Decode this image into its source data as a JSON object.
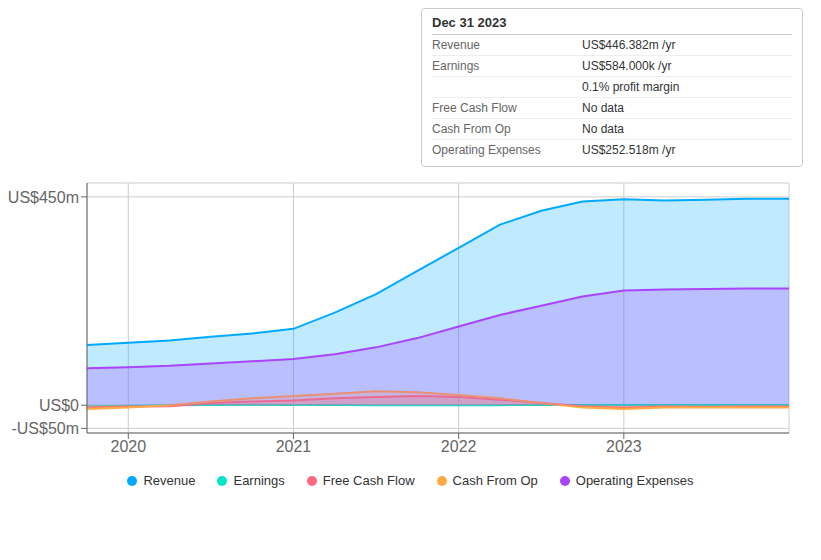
{
  "chart_data": {
    "type": "area",
    "x": [
      2019.75,
      2020.0,
      2020.25,
      2020.5,
      2020.75,
      2021.0,
      2021.25,
      2021.5,
      2021.75,
      2022.0,
      2022.25,
      2022.5,
      2022.75,
      2023.0,
      2023.25,
      2023.5,
      2023.75,
      2024.0
    ],
    "series": [
      {
        "name": "Revenue",
        "color": "#00aaff",
        "values": [
          130,
          135,
          140,
          148,
          155,
          165,
          200,
          240,
          290,
          340,
          390,
          420,
          440,
          445,
          442,
          444,
          446,
          446
        ]
      },
      {
        "name": "Earnings",
        "color": "#00e5cc",
        "values": [
          -2,
          -1,
          0,
          0.5,
          1,
          0.5,
          0.3,
          0.2,
          0.1,
          0.1,
          0.2,
          0.3,
          0.4,
          0.6,
          0.5,
          0.6,
          0.58,
          0.58
        ]
      },
      {
        "name": "Free Cash Flow",
        "color": "#ff6680",
        "values": [
          -5,
          -3,
          -2,
          5,
          8,
          10,
          15,
          18,
          20,
          18,
          12,
          5,
          -2,
          -5,
          -3,
          -4,
          -3,
          -3
        ]
      },
      {
        "name": "Cash From Op",
        "color": "#ffaa44",
        "values": [
          -8,
          -5,
          0,
          8,
          15,
          20,
          25,
          30,
          28,
          22,
          15,
          5,
          -5,
          -8,
          -5,
          -5,
          -5,
          -5
        ]
      },
      {
        "name": "Operating Expenses",
        "color": "#aa44ff",
        "values": [
          80,
          82,
          85,
          90,
          95,
          100,
          110,
          125,
          145,
          170,
          195,
          215,
          235,
          248,
          250,
          251,
          252,
          252
        ]
      }
    ],
    "xlim": [
      2019.75,
      2024.0
    ],
    "xticks": [
      2020,
      2021,
      2022,
      2023
    ],
    "ylim": [
      -60,
      480
    ],
    "yticks": [
      {
        "value": -50,
        "label": "-US$50m"
      },
      {
        "value": 0,
        "label": "US$0"
      },
      {
        "value": 450,
        "label": "US$450m"
      }
    ],
    "grid": true,
    "legend": "bottom",
    "annotations": {
      "heading": "Dec 31 2023",
      "rows": [
        {
          "label": "Revenue",
          "value": "US$446.382m /yr"
        },
        {
          "label": "Earnings",
          "value": "US$584.000k /yr"
        },
        {
          "value": "0.1% profit margin"
        },
        {
          "label": "Free Cash Flow",
          "value": "No data"
        },
        {
          "label": "Cash From Op",
          "value": "No data"
        },
        {
          "label": "Operating Expenses",
          "value": "US$252.518m /yr"
        }
      ]
    }
  }
}
